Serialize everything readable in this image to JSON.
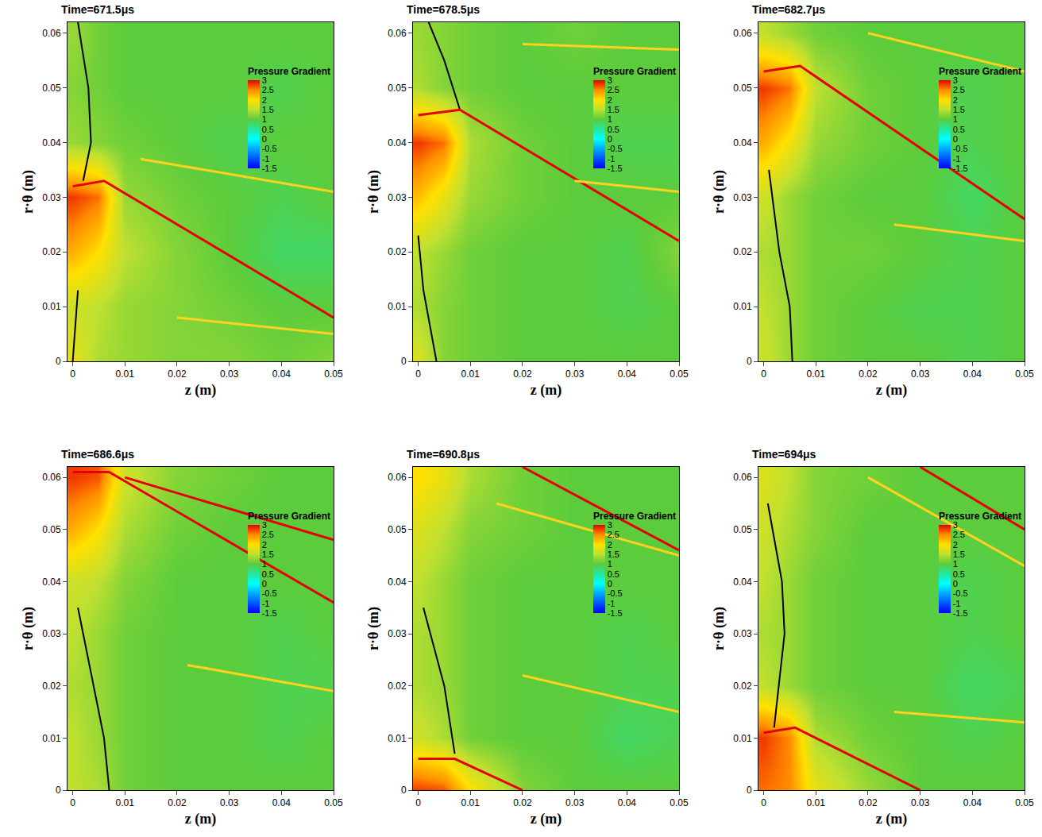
{
  "chart_data": [
    {
      "type": "heatmap",
      "title": "Time=671.5μs",
      "x_label": "z (m)",
      "y_label": "r·θ (m)",
      "xlim": [
        -0.001,
        0.05
      ],
      "ylim": [
        0,
        0.062
      ],
      "xticks": [
        0,
        0.01,
        0.02,
        0.03,
        0.04,
        0.05
      ],
      "yticks": [
        0,
        0.01,
        0.02,
        0.03,
        0.04,
        0.05,
        0.06
      ],
      "x": [
        0,
        0.005,
        0.01,
        0.02,
        0.03,
        0.04,
        0.05
      ],
      "y": [
        0,
        0.01,
        0.02,
        0.03,
        0.04,
        0.05,
        0.06
      ],
      "z": [
        [
          1.8,
          1.4,
          1.3,
          1.2,
          1.2,
          1.1,
          1.2
        ],
        [
          1.6,
          1.5,
          1.3,
          1.2,
          1.1,
          1.0,
          1.0
        ],
        [
          2.3,
          2.0,
          1.5,
          1.2,
          1.0,
          0.8,
          0.8
        ],
        [
          2.8,
          2.6,
          1.3,
          1.1,
          1.0,
          0.9,
          1.0
        ],
        [
          1.3,
          1.2,
          1.1,
          1.0,
          0.9,
          1.0,
          1.0
        ],
        [
          1.2,
          1.1,
          1.0,
          1.0,
          1.0,
          0.9,
          1.0
        ],
        [
          1.3,
          1.1,
          1.0,
          1.0,
          1.0,
          1.0,
          1.0
        ]
      ],
      "colorbar": {
        "title": "Pressure Gradient",
        "range": [
          -1.5,
          3
        ],
        "ticks": [
          3,
          2.5,
          2,
          1.5,
          1,
          0.5,
          0,
          -0.5,
          -1,
          -1.5
        ]
      },
      "series": [
        {
          "type": "line",
          "color": "#000000",
          "x": [
            0.001,
            0.003,
            0.0035,
            0.002
          ],
          "y": [
            0.062,
            0.05,
            0.04,
            0.033
          ]
        },
        {
          "type": "line",
          "color": "#000000",
          "x": [
            0.001,
            0.0005,
            0
          ],
          "y": [
            0.013,
            0.006,
            0
          ]
        },
        {
          "type": "line",
          "color": "#e60000",
          "x": [
            0,
            0.006,
            0.05
          ],
          "y": [
            0.032,
            0.033,
            0.008
          ]
        },
        {
          "type": "line",
          "color": "#ffd21f",
          "x": [
            0.02,
            0.05
          ],
          "y": [
            0.008,
            0.005
          ]
        },
        {
          "type": "line",
          "color": "#ffd21f",
          "x": [
            0.013,
            0.05
          ],
          "y": [
            0.037,
            0.031
          ]
        }
      ]
    },
    {
      "type": "heatmap",
      "title": "Time=678.5μs",
      "x_label": "z (m)",
      "y_label": "r·θ (m)",
      "xlim": [
        -0.001,
        0.05
      ],
      "ylim": [
        0,
        0.062
      ],
      "xticks": [
        0,
        0.01,
        0.02,
        0.03,
        0.04,
        0.05
      ],
      "yticks": [
        0,
        0.01,
        0.02,
        0.03,
        0.04,
        0.05,
        0.06
      ],
      "x": [
        0,
        0.005,
        0.01,
        0.02,
        0.03,
        0.04,
        0.05
      ],
      "y": [
        0,
        0.01,
        0.02,
        0.03,
        0.04,
        0.05,
        0.06
      ],
      "z": [
        [
          1.7,
          1.2,
          1.1,
          1.0,
          1.0,
          1.0,
          1.0
        ],
        [
          1.4,
          1.2,
          1.1,
          1.0,
          1.0,
          0.9,
          1.0
        ],
        [
          1.5,
          1.3,
          1.1,
          1.0,
          1.0,
          0.9,
          1.2
        ],
        [
          2.2,
          1.8,
          1.3,
          1.1,
          1.0,
          1.0,
          1.0
        ],
        [
          2.8,
          2.6,
          1.4,
          1.1,
          1.0,
          0.9,
          0.9
        ],
        [
          1.4,
          1.2,
          1.1,
          1.0,
          1.0,
          1.0,
          1.0
        ],
        [
          1.3,
          1.2,
          1.1,
          1.0,
          1.1,
          1.0,
          1.0
        ]
      ],
      "colorbar": {
        "title": "Pressure Gradient",
        "range": [
          -1.5,
          3
        ],
        "ticks": [
          3,
          2.5,
          2,
          1.5,
          1,
          0.5,
          0,
          -0.5,
          -1,
          -1.5
        ]
      },
      "series": [
        {
          "type": "line",
          "color": "#000000",
          "x": [
            0.002,
            0.005,
            0.008
          ],
          "y": [
            0.062,
            0.055,
            0.046
          ]
        },
        {
          "type": "line",
          "color": "#000000",
          "x": [
            0,
            0.001,
            0.0035
          ],
          "y": [
            0.023,
            0.013,
            0
          ]
        },
        {
          "type": "line",
          "color": "#e60000",
          "x": [
            0,
            0.008,
            0.05
          ],
          "y": [
            0.045,
            0.046,
            0.022
          ]
        },
        {
          "type": "line",
          "color": "#ffd21f",
          "x": [
            0.03,
            0.05
          ],
          "y": [
            0.033,
            0.031
          ]
        },
        {
          "type": "line",
          "color": "#ffd21f",
          "x": [
            0.02,
            0.05
          ],
          "y": [
            0.058,
            0.057
          ]
        }
      ]
    },
    {
      "type": "heatmap",
      "title": "Time=682.7μs",
      "x_label": "z (m)",
      "y_label": "r·θ (m)",
      "xlim": [
        -0.001,
        0.05
      ],
      "ylim": [
        0,
        0.062
      ],
      "xticks": [
        0,
        0.01,
        0.02,
        0.03,
        0.04,
        0.05
      ],
      "yticks": [
        0,
        0.01,
        0.02,
        0.03,
        0.04,
        0.05,
        0.06
      ],
      "x": [
        0,
        0.005,
        0.01,
        0.02,
        0.03,
        0.04,
        0.05
      ],
      "y": [
        0,
        0.01,
        0.02,
        0.03,
        0.04,
        0.05,
        0.06
      ],
      "z": [
        [
          1.6,
          1.3,
          1.1,
          1.0,
          1.0,
          0.9,
          1.0
        ],
        [
          1.5,
          1.3,
          1.1,
          1.0,
          0.9,
          0.9,
          1.0
        ],
        [
          1.4,
          1.3,
          1.1,
          1.1,
          1.0,
          0.9,
          1.0
        ],
        [
          1.6,
          1.3,
          1.1,
          1.0,
          1.0,
          0.8,
          1.0
        ],
        [
          2.3,
          1.9,
          1.3,
          1.1,
          1.0,
          0.9,
          1.0
        ],
        [
          2.8,
          2.6,
          1.5,
          1.1,
          1.0,
          0.9,
          1.0
        ],
        [
          1.5,
          1.3,
          1.1,
          1.0,
          1.0,
          1.0,
          1.0
        ]
      ],
      "colorbar": {
        "title": "Pressure Gradient",
        "range": [
          -1.5,
          3
        ],
        "ticks": [
          3,
          2.5,
          2,
          1.5,
          1,
          0.5,
          0,
          -0.5,
          -1,
          -1.5
        ]
      },
      "series": [
        {
          "type": "line",
          "color": "#000000",
          "x": [
            0.001,
            0.003,
            0.005,
            0.0055
          ],
          "y": [
            0.035,
            0.02,
            0.01,
            0
          ]
        },
        {
          "type": "line",
          "color": "#e60000",
          "x": [
            0,
            0.007,
            0.05
          ],
          "y": [
            0.053,
            0.054,
            0.026
          ]
        },
        {
          "type": "line",
          "color": "#ffd21f",
          "x": [
            0.025,
            0.05
          ],
          "y": [
            0.025,
            0.022
          ]
        },
        {
          "type": "line",
          "color": "#ffd21f",
          "x": [
            0.02,
            0.05
          ],
          "y": [
            0.06,
            0.053
          ]
        }
      ]
    },
    {
      "type": "heatmap",
      "title": "Time=686.6μs",
      "x_label": "z (m)",
      "y_label": "r·θ (m)",
      "xlim": [
        -0.001,
        0.05
      ],
      "ylim": [
        0,
        0.062
      ],
      "xticks": [
        0,
        0.01,
        0.02,
        0.03,
        0.04,
        0.05
      ],
      "yticks": [
        0,
        0.01,
        0.02,
        0.03,
        0.04,
        0.05,
        0.06
      ],
      "x": [
        0,
        0.005,
        0.01,
        0.02,
        0.03,
        0.04,
        0.05
      ],
      "y": [
        0,
        0.01,
        0.02,
        0.03,
        0.04,
        0.05,
        0.06
      ],
      "z": [
        [
          1.5,
          1.4,
          1.1,
          1.0,
          1.0,
          1.0,
          1.0
        ],
        [
          1.5,
          1.3,
          1.1,
          1.0,
          1.0,
          0.9,
          1.0
        ],
        [
          1.4,
          1.3,
          1.1,
          1.0,
          1.0,
          0.9,
          0.9
        ],
        [
          1.5,
          1.3,
          1.1,
          1.0,
          1.0,
          0.9,
          1.0
        ],
        [
          1.6,
          1.5,
          1.2,
          1.0,
          1.0,
          1.0,
          1.0
        ],
        [
          2.3,
          2.0,
          1.4,
          1.1,
          1.0,
          1.0,
          1.0
        ],
        [
          2.8,
          2.7,
          1.6,
          1.2,
          1.1,
          1.0,
          1.0
        ]
      ],
      "colorbar": {
        "title": "Pressure Gradient",
        "range": [
          -1.5,
          3
        ],
        "ticks": [
          3,
          2.5,
          2,
          1.5,
          1,
          0.5,
          0,
          -0.5,
          -1,
          -1.5
        ]
      },
      "series": [
        {
          "type": "line",
          "color": "#000000",
          "x": [
            0.001,
            0.004,
            0.006,
            0.007
          ],
          "y": [
            0.035,
            0.02,
            0.01,
            0
          ]
        },
        {
          "type": "line",
          "color": "#e60000",
          "x": [
            0,
            0.007,
            0.05
          ],
          "y": [
            0.061,
            0.061,
            0.036
          ]
        },
        {
          "type": "line",
          "color": "#e60000",
          "x": [
            0.01,
            0.05
          ],
          "y": [
            0.06,
            0.048
          ]
        },
        {
          "type": "line",
          "color": "#ffd21f",
          "x": [
            0.022,
            0.05
          ],
          "y": [
            0.024,
            0.019
          ]
        }
      ]
    },
    {
      "type": "heatmap",
      "title": "Time=690.8μs",
      "x_label": "z (m)",
      "y_label": "r·θ (m)",
      "xlim": [
        -0.001,
        0.05
      ],
      "ylim": [
        0,
        0.062
      ],
      "xticks": [
        0,
        0.01,
        0.02,
        0.03,
        0.04,
        0.05
      ],
      "yticks": [
        0,
        0.01,
        0.02,
        0.03,
        0.04,
        0.05,
        0.06
      ],
      "x": [
        0,
        0.005,
        0.01,
        0.02,
        0.03,
        0.04,
        0.05
      ],
      "y": [
        0,
        0.01,
        0.02,
        0.03,
        0.04,
        0.05,
        0.06
      ],
      "z": [
        [
          2.8,
          2.7,
          2.0,
          1.2,
          1.0,
          1.0,
          1.0
        ],
        [
          1.6,
          1.4,
          1.1,
          1.0,
          1.0,
          0.8,
          0.9
        ],
        [
          1.4,
          1.3,
          1.1,
          1.0,
          1.0,
          0.9,
          0.9
        ],
        [
          1.4,
          1.3,
          1.1,
          1.0,
          1.0,
          0.9,
          1.0
        ],
        [
          1.5,
          1.3,
          1.1,
          1.0,
          1.0,
          1.0,
          1.0
        ],
        [
          1.7,
          1.5,
          1.2,
          1.1,
          1.0,
          1.0,
          1.0
        ],
        [
          2.0,
          1.8,
          1.4,
          1.1,
          1.0,
          1.0,
          1.0
        ]
      ],
      "colorbar": {
        "title": "Pressure Gradient",
        "range": [
          -1.5,
          3
        ],
        "ticks": [
          3,
          2.5,
          2,
          1.5,
          1,
          0.5,
          0,
          -0.5,
          -1,
          -1.5
        ]
      },
      "series": [
        {
          "type": "line",
          "color": "#000000",
          "x": [
            0.001,
            0.005,
            0.007
          ],
          "y": [
            0.035,
            0.02,
            0.007
          ]
        },
        {
          "type": "line",
          "color": "#e60000",
          "x": [
            0,
            0.007,
            0.02
          ],
          "y": [
            0.006,
            0.006,
            0
          ]
        },
        {
          "type": "line",
          "color": "#e60000",
          "x": [
            0.02,
            0.05
          ],
          "y": [
            0.062,
            0.046
          ]
        },
        {
          "type": "line",
          "color": "#ffd21f",
          "x": [
            0.015,
            0.05
          ],
          "y": [
            0.055,
            0.045
          ]
        },
        {
          "type": "line",
          "color": "#ffd21f",
          "x": [
            0.02,
            0.05
          ],
          "y": [
            0.022,
            0.015
          ]
        }
      ]
    },
    {
      "type": "heatmap",
      "title": "Time=694μs",
      "x_label": "z (m)",
      "y_label": "r·θ (m)",
      "xlim": [
        -0.001,
        0.05
      ],
      "ylim": [
        0,
        0.062
      ],
      "xticks": [
        0,
        0.01,
        0.02,
        0.03,
        0.04,
        0.05
      ],
      "yticks": [
        0,
        0.01,
        0.02,
        0.03,
        0.04,
        0.05,
        0.06
      ],
      "x": [
        0,
        0.005,
        0.01,
        0.02,
        0.03,
        0.04,
        0.05
      ],
      "y": [
        0,
        0.01,
        0.02,
        0.03,
        0.04,
        0.05,
        0.06
      ],
      "z": [
        [
          2.6,
          2.5,
          1.8,
          1.3,
          1.0,
          1.0,
          1.0
        ],
        [
          2.8,
          2.5,
          1.4,
          1.1,
          1.0,
          0.9,
          1.0
        ],
        [
          1.5,
          1.3,
          1.1,
          1.0,
          1.0,
          0.8,
          0.9
        ],
        [
          1.4,
          1.3,
          1.1,
          1.0,
          1.0,
          0.9,
          1.0
        ],
        [
          1.5,
          1.3,
          1.1,
          1.0,
          1.0,
          0.9,
          1.0
        ],
        [
          1.6,
          1.4,
          1.2,
          1.0,
          1.0,
          1.0,
          1.0
        ],
        [
          1.7,
          1.5,
          1.2,
          1.1,
          1.0,
          1.0,
          1.0
        ]
      ],
      "colorbar": {
        "title": "Pressure Gradient",
        "range": [
          -1.5,
          3
        ],
        "ticks": [
          3,
          2.5,
          2,
          1.5,
          1,
          0.5,
          0,
          -0.5,
          -1,
          -1.5
        ]
      },
      "series": [
        {
          "type": "line",
          "color": "#000000",
          "x": [
            0.0008,
            0.0035,
            0.004,
            0.002
          ],
          "y": [
            0.055,
            0.04,
            0.03,
            0.012
          ]
        },
        {
          "type": "line",
          "color": "#e60000",
          "x": [
            0,
            0.006,
            0.03
          ],
          "y": [
            0.011,
            0.012,
            0
          ]
        },
        {
          "type": "line",
          "color": "#e60000",
          "x": [
            0.03,
            0.05
          ],
          "y": [
            0.062,
            0.05
          ]
        },
        {
          "type": "line",
          "color": "#ffd21f",
          "x": [
            0.02,
            0.05
          ],
          "y": [
            0.06,
            0.043
          ]
        },
        {
          "type": "line",
          "color": "#ffd21f",
          "x": [
            0.025,
            0.05
          ],
          "y": [
            0.015,
            0.013
          ]
        }
      ]
    }
  ]
}
